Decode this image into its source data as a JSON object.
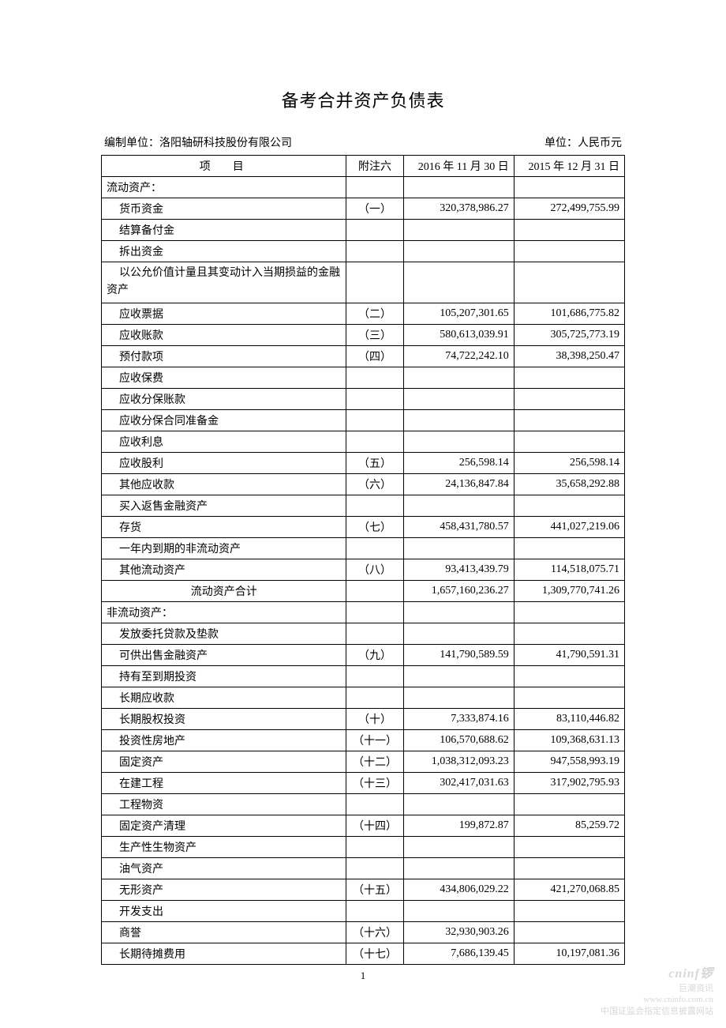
{
  "title": "备考合并资产负债表",
  "company_label": "编制单位：洛阳轴研科技股份有限公司",
  "currency_label": "单位：人民币元",
  "columns": {
    "item": "项目",
    "note": "附注六",
    "date1": "2016 年 11 月 30 日",
    "date2": "2015 年 12 月 31 日"
  },
  "rows": [
    {
      "item": "流动资产：",
      "indent": 0,
      "note": "",
      "v1": "",
      "v2": ""
    },
    {
      "item": "货币资金",
      "indent": 1,
      "note": "（一）",
      "v1": "320,378,986.27",
      "v2": "272,499,755.99"
    },
    {
      "item": "结算备付金",
      "indent": 1,
      "note": "",
      "v1": "",
      "v2": ""
    },
    {
      "item": "拆出资金",
      "indent": 1,
      "note": "",
      "v1": "",
      "v2": ""
    },
    {
      "item": "以公允价值计量且其变动计入当期损益的金融资产",
      "indent": 1,
      "note": "",
      "v1": "",
      "v2": "",
      "wrap": true
    },
    {
      "item": "应收票据",
      "indent": 1,
      "note": "（二）",
      "v1": "105,207,301.65",
      "v2": "101,686,775.82"
    },
    {
      "item": "应收账款",
      "indent": 1,
      "note": "（三）",
      "v1": "580,613,039.91",
      "v2": "305,725,773.19"
    },
    {
      "item": "预付款项",
      "indent": 1,
      "note": "（四）",
      "v1": "74,722,242.10",
      "v2": "38,398,250.47"
    },
    {
      "item": "应收保费",
      "indent": 1,
      "note": "",
      "v1": "",
      "v2": ""
    },
    {
      "item": "应收分保账款",
      "indent": 1,
      "note": "",
      "v1": "",
      "v2": ""
    },
    {
      "item": "应收分保合同准备金",
      "indent": 1,
      "note": "",
      "v1": "",
      "v2": ""
    },
    {
      "item": "应收利息",
      "indent": 1,
      "note": "",
      "v1": "",
      "v2": ""
    },
    {
      "item": "应收股利",
      "indent": 1,
      "note": "（五）",
      "v1": "256,598.14",
      "v2": "256,598.14"
    },
    {
      "item": "其他应收款",
      "indent": 1,
      "note": "（六）",
      "v1": "24,136,847.84",
      "v2": "35,658,292.88"
    },
    {
      "item": "买入返售金融资产",
      "indent": 1,
      "note": "",
      "v1": "",
      "v2": ""
    },
    {
      "item": "存货",
      "indent": 1,
      "note": "（七）",
      "v1": "458,431,780.57",
      "v2": "441,027,219.06"
    },
    {
      "item": "一年内到期的非流动资产",
      "indent": 1,
      "note": "",
      "v1": "",
      "v2": ""
    },
    {
      "item": "其他流动资产",
      "indent": 1,
      "note": "（八）",
      "v1": "93,413,439.79",
      "v2": "114,518,075.71"
    },
    {
      "item": "流动资产合计",
      "indent": 0,
      "center": true,
      "note": "",
      "v1": "1,657,160,236.27",
      "v2": "1,309,770,741.26"
    },
    {
      "item": "非流动资产：",
      "indent": 0,
      "note": "",
      "v1": "",
      "v2": ""
    },
    {
      "item": "发放委托贷款及垫款",
      "indent": 1,
      "note": "",
      "v1": "",
      "v2": ""
    },
    {
      "item": "可供出售金融资产",
      "indent": 1,
      "note": "（九）",
      "v1": "141,790,589.59",
      "v2": "41,790,591.31"
    },
    {
      "item": "持有至到期投资",
      "indent": 1,
      "note": "",
      "v1": "",
      "v2": ""
    },
    {
      "item": "长期应收款",
      "indent": 1,
      "note": "",
      "v1": "",
      "v2": ""
    },
    {
      "item": "长期股权投资",
      "indent": 1,
      "note": "（十）",
      "v1": "7,333,874.16",
      "v2": "83,110,446.82"
    },
    {
      "item": "投资性房地产",
      "indent": 1,
      "note": "（十一）",
      "v1": "106,570,688.62",
      "v2": "109,368,631.13"
    },
    {
      "item": "固定资产",
      "indent": 1,
      "note": "（十二）",
      "v1": "1,038,312,093.23",
      "v2": "947,558,993.19"
    },
    {
      "item": "在建工程",
      "indent": 1,
      "note": "（十三）",
      "v1": "302,417,031.63",
      "v2": "317,902,795.93"
    },
    {
      "item": "工程物资",
      "indent": 1,
      "note": "",
      "v1": "",
      "v2": ""
    },
    {
      "item": "固定资产清理",
      "indent": 1,
      "note": "（十四）",
      "v1": "199,872.87",
      "v2": "85,259.72"
    },
    {
      "item": "生产性生物资产",
      "indent": 1,
      "note": "",
      "v1": "",
      "v2": ""
    },
    {
      "item": "油气资产",
      "indent": 1,
      "note": "",
      "v1": "",
      "v2": ""
    },
    {
      "item": "无形资产",
      "indent": 1,
      "note": "（十五）",
      "v1": "434,806,029.22",
      "v2": "421,270,068.85"
    },
    {
      "item": "开发支出",
      "indent": 1,
      "note": "",
      "v1": "",
      "v2": ""
    },
    {
      "item": "商誉",
      "indent": 1,
      "note": "（十六）",
      "v1": "32,930,903.26",
      "v2": ""
    },
    {
      "item": "长期待摊费用",
      "indent": 1,
      "note": "（十七）",
      "v1": "7,686,139.45",
      "v2": "10,197,081.36"
    }
  ],
  "page_number": "1",
  "watermark": {
    "brand": "cninf",
    "sub": "巨潮资讯",
    "url": "www.cninfo.com.cn",
    "desc": "中国证监会指定信息披露网站"
  }
}
